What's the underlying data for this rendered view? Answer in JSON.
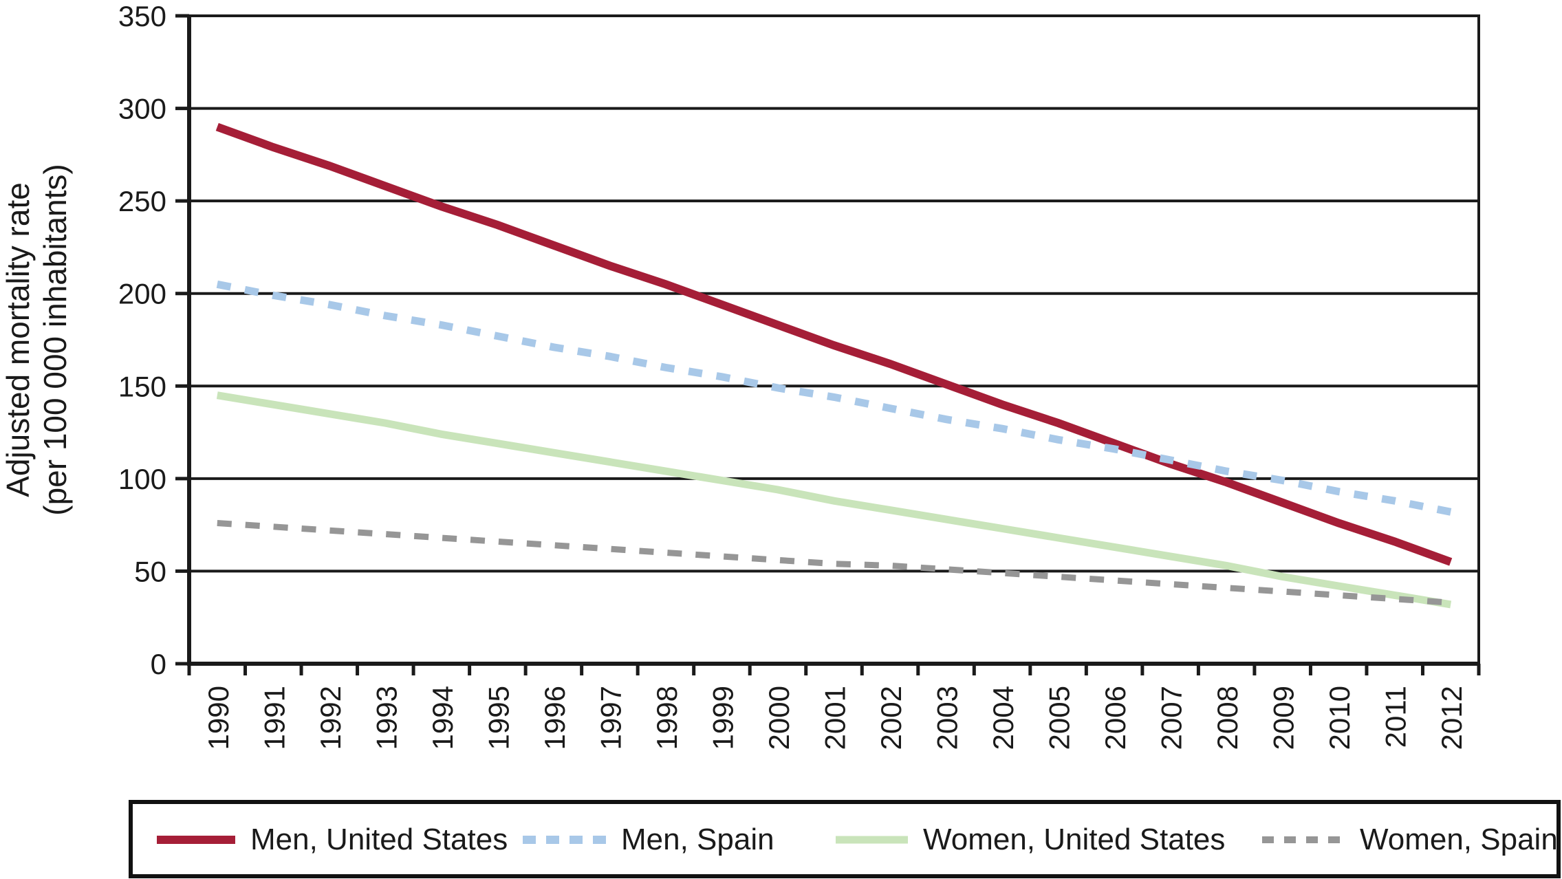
{
  "figure": {
    "ylabel_line1": "Adjusted mortality rate",
    "ylabel_line2": "(per 100 000 inhabitants)"
  },
  "chart_data": {
    "type": "line",
    "x": [
      1990,
      1991,
      1992,
      1993,
      1994,
      1995,
      1996,
      1997,
      1998,
      1999,
      2000,
      2001,
      2002,
      2003,
      2004,
      2005,
      2006,
      2007,
      2008,
      2009,
      2010,
      2011,
      2012
    ],
    "ylim": [
      0,
      350
    ],
    "ytick_step": 50,
    "yticks": [
      0,
      50,
      100,
      150,
      200,
      250,
      300,
      350
    ],
    "grid": true,
    "legend_position": "bottom",
    "axis_color": "#1a1a1a",
    "ylabel": "Adjusted mortality rate (per 100 000 inhabitants)",
    "series": [
      {
        "name": "Men, United States",
        "color": "#A51E37",
        "style": "solid",
        "values": [
          290,
          279,
          269,
          258,
          247,
          237,
          226,
          215,
          205,
          194,
          183,
          172,
          162,
          151,
          140,
          130,
          119,
          108,
          98,
          87,
          76,
          66,
          55
        ]
      },
      {
        "name": "Men, Spain",
        "color": "#A8C8E8",
        "style": "dashed",
        "values": [
          205,
          199,
          194,
          188,
          183,
          177,
          171,
          166,
          160,
          155,
          149,
          144,
          138,
          132,
          127,
          121,
          116,
          110,
          104,
          99,
          93,
          88,
          82
        ]
      },
      {
        "name": "Women, United States",
        "color": "#C9E4BA",
        "style": "solid",
        "values": [
          145,
          140,
          135,
          130,
          124,
          119,
          114,
          109,
          104,
          99,
          94,
          88,
          83,
          78,
          73,
          68,
          63,
          58,
          53,
          47,
          42,
          37,
          32
        ]
      },
      {
        "name": "Women, Spain",
        "color": "#969696",
        "style": "dashed",
        "values": [
          76,
          74,
          72,
          70,
          68,
          66,
          64,
          62,
          60,
          58,
          56,
          54,
          53,
          51,
          49,
          47,
          45,
          43,
          41,
          39,
          37,
          35,
          33
        ]
      }
    ]
  }
}
